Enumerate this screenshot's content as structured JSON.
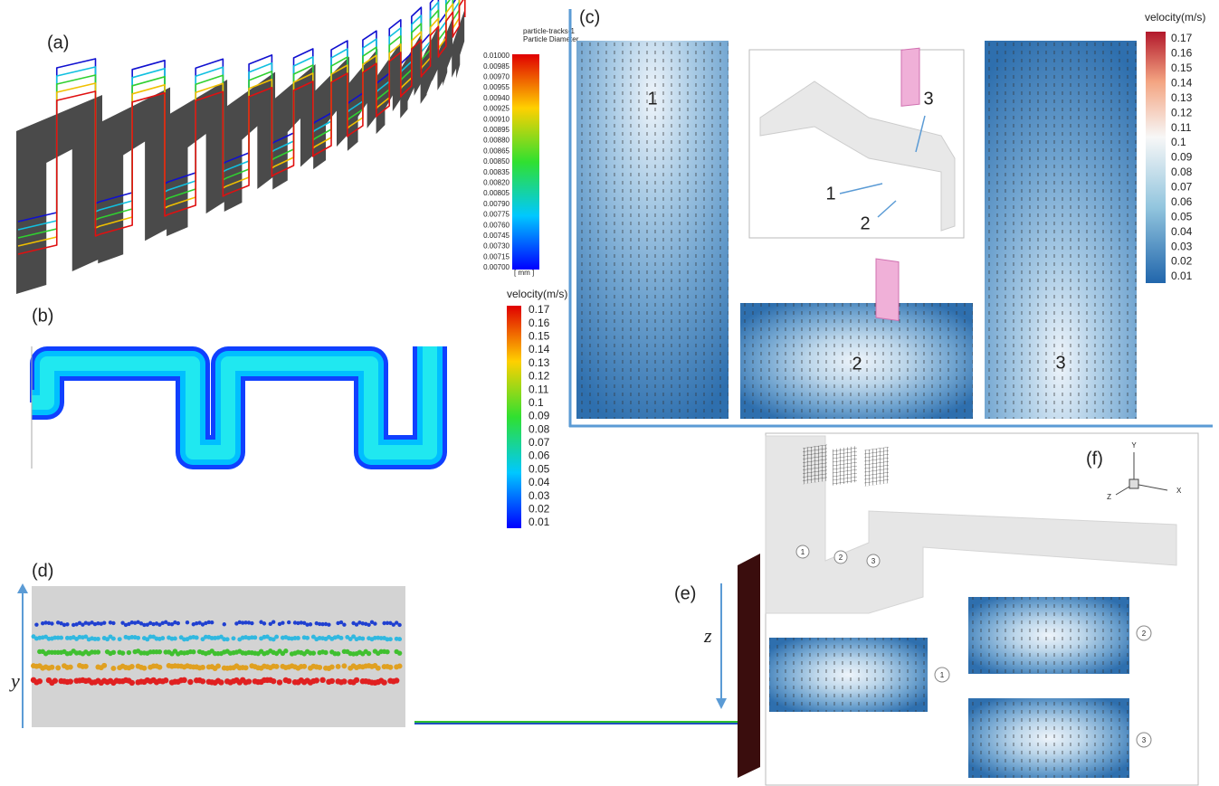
{
  "panel_a": {
    "label": "(a)",
    "legend_title": [
      "particle-tracks-1",
      "Particle Diameter"
    ],
    "legend_ticks": [
      "0.01000",
      "0.00985",
      "0.00970",
      "0.00955",
      "0.00940",
      "0.00925",
      "0.00910",
      "0.00895",
      "0.00880",
      "0.00865",
      "0.00850",
      "0.00835",
      "0.00820",
      "0.00805",
      "0.00790",
      "0.00775",
      "0.00760",
      "0.00745",
      "0.00730",
      "0.00715",
      "0.00700"
    ],
    "unit": "[ mm ]"
  },
  "panel_b": {
    "label": "(b)",
    "legend_title": "velocity(m/s)",
    "legend_ticks": [
      "0.17",
      "0.16",
      "0.15",
      "0.14",
      "0.13",
      "0.12",
      "0.11",
      "0.1",
      "0.09",
      "0.08",
      "0.07",
      "0.06",
      "0.05",
      "0.04",
      "0.03",
      "0.02",
      "0.01"
    ]
  },
  "panel_c": {
    "label": "(c)",
    "plane_labels": [
      "1",
      "2",
      "3"
    ],
    "inset_labels": [
      "1",
      "2",
      "3"
    ],
    "legend_title": "velocity(m/s)",
    "legend_ticks": [
      "0.17",
      "0.16",
      "0.15",
      "0.14",
      "0.13",
      "0.12",
      "0.11",
      "0.1",
      "0.09",
      "0.08",
      "0.07",
      "0.06",
      "0.05",
      "0.04",
      "0.03",
      "0.02",
      "0.01"
    ]
  },
  "panel_d": {
    "label": "(d)",
    "axis_label": "y"
  },
  "panel_e": {
    "label": "(e)",
    "axis_label": "z"
  },
  "panel_f": {
    "label": "(f)",
    "axes": [
      "Y",
      "X",
      "Z"
    ],
    "plane_labels": [
      "1",
      "2",
      "3"
    ]
  }
}
